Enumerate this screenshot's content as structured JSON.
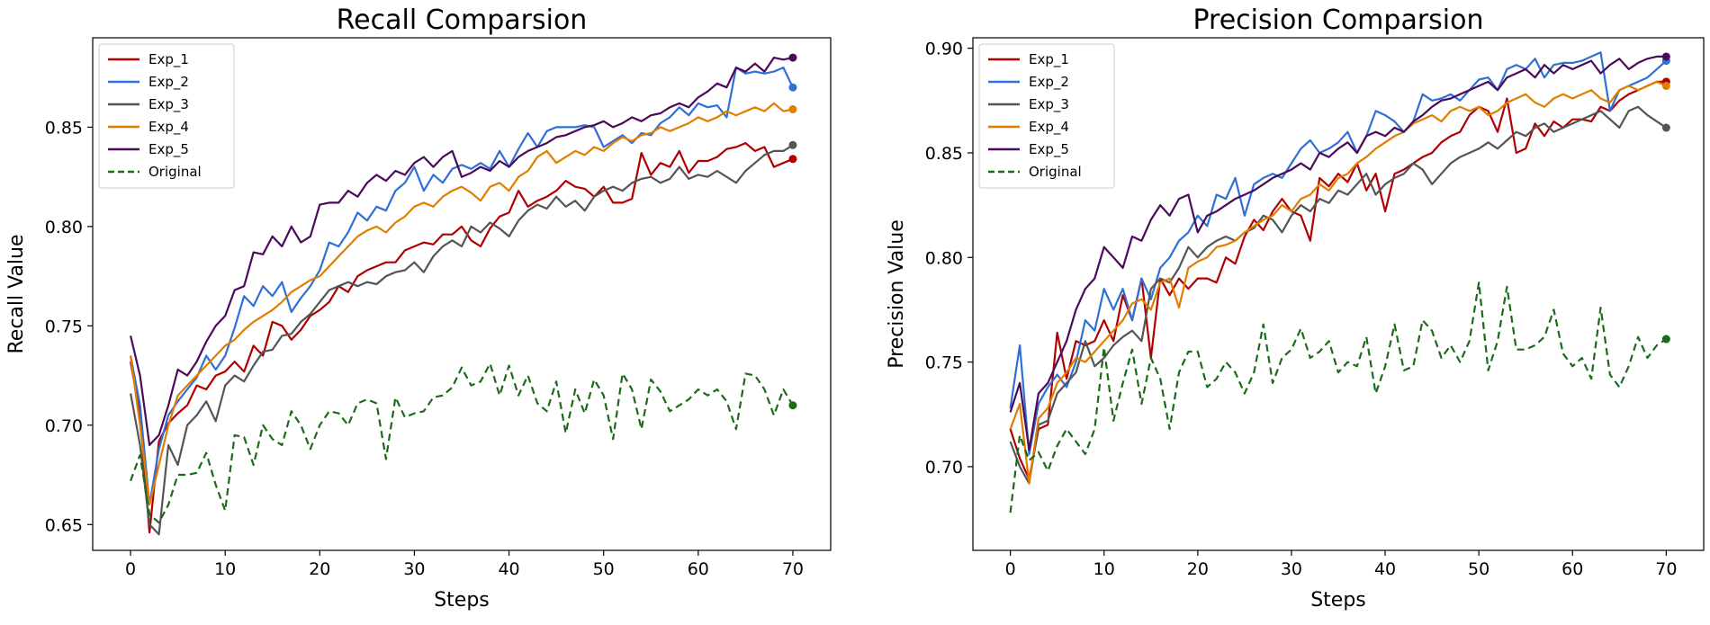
{
  "chart_data": [
    {
      "type": "line",
      "title": "Recall Comparsion",
      "xlabel": "Steps",
      "ylabel": "Recall Value",
      "xlim": [
        -4,
        74
      ],
      "ylim": [
        0.637,
        0.895
      ],
      "xticks": [
        0,
        10,
        20,
        30,
        40,
        50,
        60,
        70
      ],
      "yticks": [
        0.65,
        0.7,
        0.75,
        0.8,
        0.85
      ],
      "ytick_labels": [
        "0.65",
        "0.70",
        "0.75",
        "0.80",
        "0.85"
      ],
      "legend_position": "upper-left",
      "grid": false,
      "series": [
        {
          "name": "Exp_1",
          "color": "#b00000",
          "dashed": false,
          "values": [
            0.732,
            0.705,
            0.646,
            0.692,
            0.701,
            0.706,
            0.71,
            0.72,
            0.718,
            0.725,
            0.727,
            0.732,
            0.727,
            0.74,
            0.735,
            0.752,
            0.75,
            0.743,
            0.748,
            0.755,
            0.758,
            0.762,
            0.77,
            0.767,
            0.775,
            0.778,
            0.78,
            0.782,
            0.782,
            0.788,
            0.79,
            0.792,
            0.791,
            0.796,
            0.796,
            0.8,
            0.793,
            0.79,
            0.799,
            0.805,
            0.807,
            0.818,
            0.81,
            0.813,
            0.815,
            0.818,
            0.823,
            0.82,
            0.819,
            0.815,
            0.82,
            0.812,
            0.812,
            0.814,
            0.837,
            0.826,
            0.832,
            0.83,
            0.838,
            0.827,
            0.833,
            0.833,
            0.835,
            0.839,
            0.84,
            0.842,
            0.838,
            0.84,
            0.83,
            0.832,
            0.834
          ]
        },
        {
          "name": "Exp_2",
          "color": "#2f6fd6",
          "dashed": false,
          "values": [
            0.735,
            0.71,
            0.66,
            0.688,
            0.705,
            0.712,
            0.718,
            0.724,
            0.735,
            0.728,
            0.735,
            0.749,
            0.765,
            0.76,
            0.77,
            0.765,
            0.772,
            0.757,
            0.764,
            0.77,
            0.778,
            0.792,
            0.79,
            0.797,
            0.807,
            0.803,
            0.81,
            0.808,
            0.818,
            0.822,
            0.83,
            0.818,
            0.826,
            0.822,
            0.829,
            0.831,
            0.829,
            0.832,
            0.829,
            0.838,
            0.83,
            0.839,
            0.847,
            0.84,
            0.848,
            0.85,
            0.85,
            0.85,
            0.851,
            0.85,
            0.84,
            0.843,
            0.846,
            0.842,
            0.847,
            0.846,
            0.852,
            0.855,
            0.86,
            0.856,
            0.862,
            0.86,
            0.861,
            0.855,
            0.88,
            0.877,
            0.878,
            0.877,
            0.878,
            0.88,
            0.87
          ]
        },
        {
          "name": "Exp_3",
          "color": "#555555",
          "dashed": false,
          "values": [
            0.716,
            0.69,
            0.65,
            0.645,
            0.69,
            0.68,
            0.7,
            0.705,
            0.712,
            0.702,
            0.72,
            0.725,
            0.722,
            0.73,
            0.737,
            0.738,
            0.745,
            0.746,
            0.752,
            0.756,
            0.762,
            0.768,
            0.77,
            0.772,
            0.77,
            0.772,
            0.771,
            0.775,
            0.777,
            0.778,
            0.782,
            0.777,
            0.785,
            0.79,
            0.793,
            0.79,
            0.8,
            0.797,
            0.802,
            0.799,
            0.795,
            0.803,
            0.808,
            0.811,
            0.809,
            0.815,
            0.81,
            0.813,
            0.808,
            0.815,
            0.818,
            0.82,
            0.818,
            0.822,
            0.824,
            0.825,
            0.822,
            0.824,
            0.83,
            0.824,
            0.826,
            0.825,
            0.828,
            0.825,
            0.822,
            0.828,
            0.832,
            0.836,
            0.838,
            0.838,
            0.841
          ]
        },
        {
          "name": "Exp_4",
          "color": "#e07e00",
          "dashed": false,
          "values": [
            0.735,
            0.7,
            0.66,
            0.68,
            0.7,
            0.715,
            0.72,
            0.725,
            0.73,
            0.735,
            0.74,
            0.743,
            0.748,
            0.752,
            0.755,
            0.758,
            0.762,
            0.767,
            0.77,
            0.773,
            0.775,
            0.78,
            0.785,
            0.79,
            0.795,
            0.798,
            0.8,
            0.797,
            0.802,
            0.805,
            0.81,
            0.812,
            0.81,
            0.815,
            0.818,
            0.82,
            0.817,
            0.813,
            0.82,
            0.822,
            0.818,
            0.825,
            0.828,
            0.835,
            0.838,
            0.832,
            0.835,
            0.838,
            0.836,
            0.84,
            0.838,
            0.842,
            0.845,
            0.843,
            0.846,
            0.847,
            0.85,
            0.848,
            0.85,
            0.852,
            0.855,
            0.853,
            0.855,
            0.858,
            0.856,
            0.858,
            0.86,
            0.858,
            0.862,
            0.858,
            0.859
          ]
        },
        {
          "name": "Exp_5",
          "color": "#4b0a5a",
          "dashed": false,
          "values": [
            0.745,
            0.725,
            0.69,
            0.695,
            0.71,
            0.728,
            0.725,
            0.732,
            0.742,
            0.75,
            0.755,
            0.768,
            0.77,
            0.787,
            0.786,
            0.795,
            0.79,
            0.8,
            0.792,
            0.795,
            0.811,
            0.812,
            0.812,
            0.818,
            0.815,
            0.822,
            0.826,
            0.823,
            0.828,
            0.826,
            0.832,
            0.835,
            0.83,
            0.835,
            0.838,
            0.825,
            0.827,
            0.83,
            0.828,
            0.833,
            0.83,
            0.835,
            0.838,
            0.84,
            0.842,
            0.845,
            0.846,
            0.848,
            0.85,
            0.851,
            0.853,
            0.85,
            0.852,
            0.855,
            0.853,
            0.856,
            0.857,
            0.86,
            0.862,
            0.86,
            0.865,
            0.868,
            0.872,
            0.87,
            0.88,
            0.878,
            0.882,
            0.878,
            0.885,
            0.884,
            0.885
          ]
        },
        {
          "name": "Original",
          "color": "#1a6b1a",
          "dashed": true,
          "values": [
            0.672,
            0.685,
            0.655,
            0.651,
            0.66,
            0.675,
            0.675,
            0.676,
            0.686,
            0.67,
            0.657,
            0.695,
            0.694,
            0.68,
            0.7,
            0.693,
            0.69,
            0.707,
            0.7,
            0.688,
            0.7,
            0.707,
            0.706,
            0.7,
            0.711,
            0.713,
            0.711,
            0.683,
            0.714,
            0.704,
            0.706,
            0.707,
            0.714,
            0.715,
            0.719,
            0.729,
            0.72,
            0.722,
            0.731,
            0.715,
            0.73,
            0.715,
            0.725,
            0.711,
            0.707,
            0.722,
            0.696,
            0.718,
            0.706,
            0.723,
            0.715,
            0.693,
            0.726,
            0.718,
            0.698,
            0.723,
            0.717,
            0.707,
            0.71,
            0.713,
            0.718,
            0.715,
            0.718,
            0.712,
            0.698,
            0.726,
            0.725,
            0.718,
            0.705,
            0.718,
            0.71
          ]
        }
      ]
    },
    {
      "type": "line",
      "title": "Precision Comparsion",
      "xlabel": "Steps",
      "ylabel": "Precision Value",
      "xlim": [
        -4,
        74
      ],
      "ylim": [
        0.66,
        0.905
      ],
      "xticks": [
        0,
        10,
        20,
        30,
        40,
        50,
        60,
        70
      ],
      "yticks": [
        0.7,
        0.75,
        0.8,
        0.85,
        0.9
      ],
      "ytick_labels": [
        "0.70",
        "0.75",
        "0.80",
        "0.85",
        "0.90"
      ],
      "legend_position": "upper-left",
      "grid": false,
      "series": [
        {
          "name": "Exp_1",
          "color": "#b00000",
          "dashed": false,
          "values": [
            0.718,
            0.704,
            0.694,
            0.718,
            0.72,
            0.764,
            0.742,
            0.76,
            0.758,
            0.76,
            0.77,
            0.76,
            0.782,
            0.77,
            0.79,
            0.752,
            0.79,
            0.782,
            0.79,
            0.785,
            0.79,
            0.79,
            0.788,
            0.8,
            0.797,
            0.81,
            0.818,
            0.813,
            0.822,
            0.828,
            0.822,
            0.82,
            0.808,
            0.838,
            0.834,
            0.84,
            0.836,
            0.845,
            0.832,
            0.84,
            0.822,
            0.84,
            0.842,
            0.845,
            0.848,
            0.85,
            0.855,
            0.858,
            0.86,
            0.868,
            0.872,
            0.87,
            0.86,
            0.876,
            0.85,
            0.852,
            0.864,
            0.858,
            0.865,
            0.862,
            0.866,
            0.866,
            0.865,
            0.872,
            0.87,
            0.875,
            0.878,
            0.88,
            0.882,
            0.884,
            0.884
          ]
        },
        {
          "name": "Exp_2",
          "color": "#2f6fd6",
          "dashed": false,
          "values": [
            0.728,
            0.758,
            0.706,
            0.73,
            0.738,
            0.744,
            0.738,
            0.75,
            0.77,
            0.765,
            0.785,
            0.775,
            0.785,
            0.77,
            0.79,
            0.78,
            0.795,
            0.8,
            0.808,
            0.812,
            0.82,
            0.815,
            0.83,
            0.828,
            0.838,
            0.82,
            0.835,
            0.838,
            0.84,
            0.838,
            0.845,
            0.852,
            0.856,
            0.85,
            0.852,
            0.855,
            0.86,
            0.85,
            0.858,
            0.87,
            0.868,
            0.865,
            0.86,
            0.865,
            0.878,
            0.875,
            0.876,
            0.878,
            0.875,
            0.88,
            0.885,
            0.886,
            0.88,
            0.89,
            0.892,
            0.89,
            0.895,
            0.886,
            0.892,
            0.893,
            0.893,
            0.894,
            0.896,
            0.898,
            0.87,
            0.88,
            0.882,
            0.884,
            0.886,
            0.89,
            0.894
          ]
        },
        {
          "name": "Exp_3",
          "color": "#555555",
          "dashed": false,
          "values": [
            0.712,
            0.7,
            0.692,
            0.72,
            0.722,
            0.735,
            0.74,
            0.745,
            0.76,
            0.748,
            0.752,
            0.758,
            0.762,
            0.765,
            0.76,
            0.785,
            0.79,
            0.788,
            0.795,
            0.805,
            0.8,
            0.805,
            0.808,
            0.81,
            0.808,
            0.812,
            0.814,
            0.82,
            0.818,
            0.812,
            0.82,
            0.825,
            0.822,
            0.828,
            0.826,
            0.832,
            0.83,
            0.835,
            0.84,
            0.83,
            0.835,
            0.838,
            0.84,
            0.845,
            0.842,
            0.835,
            0.84,
            0.845,
            0.848,
            0.85,
            0.852,
            0.855,
            0.852,
            0.856,
            0.86,
            0.858,
            0.862,
            0.864,
            0.86,
            0.862,
            0.864,
            0.866,
            0.868,
            0.87,
            0.866,
            0.862,
            0.87,
            0.872,
            0.868,
            0.865,
            0.862
          ]
        },
        {
          "name": "Exp_4",
          "color": "#e07e00",
          "dashed": false,
          "values": [
            0.718,
            0.73,
            0.692,
            0.723,
            0.728,
            0.74,
            0.745,
            0.752,
            0.75,
            0.755,
            0.76,
            0.765,
            0.77,
            0.778,
            0.78,
            0.775,
            0.788,
            0.79,
            0.776,
            0.795,
            0.798,
            0.8,
            0.805,
            0.806,
            0.808,
            0.812,
            0.815,
            0.818,
            0.82,
            0.825,
            0.822,
            0.828,
            0.83,
            0.835,
            0.832,
            0.838,
            0.84,
            0.845,
            0.848,
            0.852,
            0.855,
            0.858,
            0.86,
            0.864,
            0.866,
            0.868,
            0.865,
            0.87,
            0.872,
            0.87,
            0.872,
            0.868,
            0.87,
            0.874,
            0.876,
            0.878,
            0.874,
            0.872,
            0.876,
            0.878,
            0.876,
            0.878,
            0.88,
            0.876,
            0.874,
            0.88,
            0.882,
            0.88,
            0.882,
            0.884,
            0.882
          ]
        },
        {
          "name": "Exp_5",
          "color": "#4b0a5a",
          "dashed": false,
          "values": [
            0.726,
            0.74,
            0.708,
            0.735,
            0.74,
            0.75,
            0.76,
            0.775,
            0.785,
            0.79,
            0.805,
            0.8,
            0.795,
            0.81,
            0.808,
            0.818,
            0.825,
            0.82,
            0.828,
            0.83,
            0.812,
            0.82,
            0.822,
            0.825,
            0.828,
            0.83,
            0.832,
            0.835,
            0.838,
            0.84,
            0.842,
            0.845,
            0.842,
            0.85,
            0.848,
            0.852,
            0.855,
            0.85,
            0.858,
            0.86,
            0.858,
            0.862,
            0.86,
            0.865,
            0.868,
            0.872,
            0.875,
            0.876,
            0.878,
            0.88,
            0.882,
            0.884,
            0.88,
            0.886,
            0.888,
            0.89,
            0.886,
            0.892,
            0.888,
            0.892,
            0.89,
            0.892,
            0.894,
            0.888,
            0.892,
            0.895,
            0.89,
            0.893,
            0.895,
            0.896,
            0.896
          ]
        },
        {
          "name": "Original",
          "color": "#1a6b1a",
          "dashed": true,
          "values": [
            0.678,
            0.715,
            0.703,
            0.707,
            0.698,
            0.71,
            0.718,
            0.712,
            0.706,
            0.718,
            0.757,
            0.722,
            0.74,
            0.756,
            0.73,
            0.752,
            0.742,
            0.718,
            0.745,
            0.755,
            0.755,
            0.738,
            0.742,
            0.75,
            0.745,
            0.735,
            0.745,
            0.768,
            0.74,
            0.752,
            0.756,
            0.766,
            0.752,
            0.755,
            0.76,
            0.745,
            0.75,
            0.748,
            0.762,
            0.735,
            0.748,
            0.768,
            0.746,
            0.748,
            0.77,
            0.765,
            0.752,
            0.758,
            0.75,
            0.76,
            0.788,
            0.746,
            0.76,
            0.786,
            0.756,
            0.756,
            0.758,
            0.762,
            0.775,
            0.754,
            0.748,
            0.752,
            0.742,
            0.776,
            0.744,
            0.738,
            0.748,
            0.762,
            0.752,
            0.758,
            0.761
          ]
        }
      ]
    }
  ]
}
